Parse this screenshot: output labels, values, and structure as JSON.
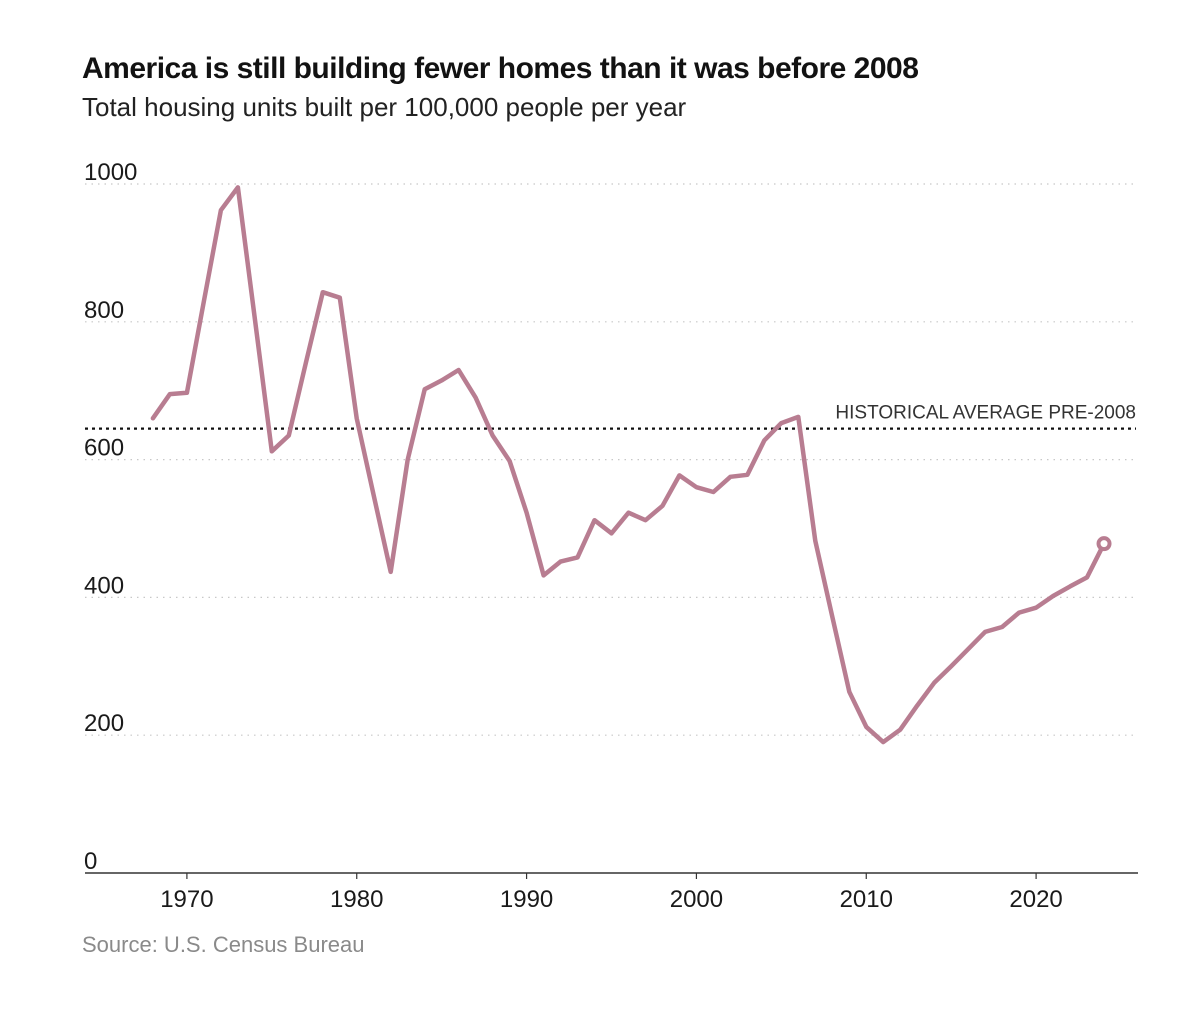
{
  "chart_data": {
    "type": "line",
    "title": "America is still building fewer homes than it was before 2008",
    "subtitle": "Total housing units built per 100,000 people per year",
    "source": "Source: U.S. Census Bureau",
    "xlabel": "",
    "ylabel": "",
    "xlim": [
      1964,
      2026
    ],
    "ylim": [
      0,
      1000
    ],
    "yticks": [
      0,
      200,
      400,
      600,
      800,
      1000
    ],
    "xticks": [
      1970,
      1980,
      1990,
      2000,
      2010,
      2020
    ],
    "grid": true,
    "color": "#b87d91",
    "reference_line": {
      "label": "HISTORICAL AVERAGE PRE-2008",
      "value": 645
    },
    "series": [
      {
        "name": "Housing units built per 100,000 people",
        "x": [
          1968,
          1969,
          1970,
          1971,
          1972,
          1973,
          1974,
          1975,
          1976,
          1977,
          1978,
          1979,
          1980,
          1981,
          1982,
          1983,
          1984,
          1985,
          1986,
          1987,
          1988,
          1989,
          1990,
          1991,
          1992,
          1993,
          1994,
          1995,
          1996,
          1997,
          1998,
          1999,
          2000,
          2001,
          2002,
          2003,
          2004,
          2005,
          2006,
          2007,
          2008,
          2009,
          2010,
          2011,
          2012,
          2013,
          2014,
          2015,
          2016,
          2017,
          2018,
          2019,
          2020,
          2021,
          2022,
          2023,
          2024
        ],
        "values": [
          660,
          695,
          697,
          830,
          962,
          995,
          805,
          612,
          635,
          740,
          843,
          835,
          660,
          548,
          437,
          600,
          702,
          715,
          730,
          690,
          635,
          598,
          523,
          432,
          452,
          458,
          512,
          493,
          523,
          512,
          533,
          577,
          560,
          553,
          575,
          578,
          628,
          653,
          662,
          482,
          372,
          263,
          212,
          190,
          208,
          243,
          276,
          300,
          325,
          350,
          357,
          378,
          385,
          402,
          416,
          429,
          478
        ]
      }
    ],
    "end_marker": {
      "x": 2024,
      "value": 478
    }
  }
}
